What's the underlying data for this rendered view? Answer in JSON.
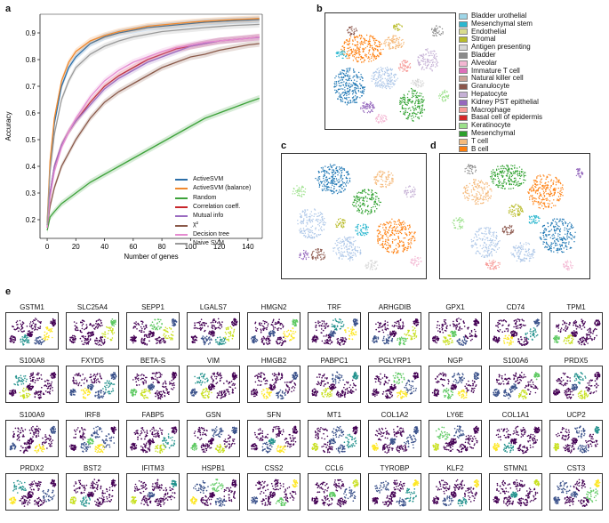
{
  "panels": {
    "a": "a",
    "b": "b",
    "c": "c",
    "d": "d",
    "e": "e"
  },
  "chart_data": {
    "type": "line",
    "xlabel": "Number of genes",
    "ylabel": "Accuracy",
    "xlim": [
      -5,
      150
    ],
    "ylim": [
      0.13,
      0.97
    ],
    "xticks": [
      0,
      20,
      40,
      60,
      80,
      100,
      120,
      140
    ],
    "yticks": [
      0.2,
      0.3,
      0.4,
      0.5,
      0.6,
      0.7,
      0.8,
      0.9
    ],
    "grid": false,
    "legend_position": "lower-right",
    "x": [
      0,
      2,
      5,
      10,
      15,
      20,
      30,
      40,
      50,
      60,
      70,
      80,
      90,
      100,
      110,
      120,
      130,
      140,
      148
    ],
    "series": [
      {
        "name": "ActiveSVM",
        "color": "#2c6fa8",
        "values": [
          0.18,
          0.4,
          0.56,
          0.7,
          0.77,
          0.81,
          0.86,
          0.885,
          0.9,
          0.91,
          0.92,
          0.925,
          0.93,
          0.935,
          0.94,
          0.943,
          0.946,
          0.948,
          0.95
        ]
      },
      {
        "name": "ActiveSVM (balance)",
        "color": "#f0892e",
        "values": [
          0.19,
          0.42,
          0.58,
          0.72,
          0.79,
          0.83,
          0.87,
          0.89,
          0.905,
          0.915,
          0.925,
          0.93,
          0.935,
          0.94,
          0.944,
          0.947,
          0.95,
          0.952,
          0.954
        ]
      },
      {
        "name": "Random",
        "color": "#3da23a",
        "values": [
          0.16,
          0.21,
          0.23,
          0.26,
          0.28,
          0.3,
          0.34,
          0.37,
          0.4,
          0.43,
          0.46,
          0.49,
          0.52,
          0.55,
          0.58,
          0.6,
          0.62,
          0.64,
          0.655
        ]
      },
      {
        "name": "Correlation coeff.",
        "color": "#c8262b",
        "values": [
          0.17,
          0.3,
          0.4,
          0.48,
          0.53,
          0.57,
          0.64,
          0.7,
          0.74,
          0.77,
          0.8,
          0.82,
          0.84,
          0.85,
          0.86,
          0.87,
          0.875,
          0.88,
          0.885
        ]
      },
      {
        "name": "Mutual info",
        "color": "#9a6bc0",
        "values": [
          0.17,
          0.3,
          0.4,
          0.48,
          0.53,
          0.57,
          0.63,
          0.69,
          0.73,
          0.76,
          0.79,
          0.81,
          0.83,
          0.85,
          0.86,
          0.87,
          0.875,
          0.88,
          0.883
        ]
      },
      {
        "name": "χ²",
        "color": "#8a5a4a",
        "values": [
          0.17,
          0.25,
          0.32,
          0.4,
          0.45,
          0.5,
          0.58,
          0.64,
          0.68,
          0.71,
          0.74,
          0.77,
          0.79,
          0.81,
          0.82,
          0.835,
          0.845,
          0.855,
          0.86
        ]
      },
      {
        "name": "Decision tree",
        "color": "#e58bd0",
        "values": [
          0.17,
          0.28,
          0.38,
          0.47,
          0.53,
          0.58,
          0.66,
          0.72,
          0.76,
          0.79,
          0.81,
          0.83,
          0.845,
          0.855,
          0.865,
          0.87,
          0.875,
          0.88,
          0.885
        ]
      },
      {
        "name": "Naive SVM",
        "color": "#9a9a9a",
        "values": [
          0.18,
          0.38,
          0.52,
          0.65,
          0.72,
          0.77,
          0.82,
          0.85,
          0.87,
          0.885,
          0.895,
          0.905,
          0.91,
          0.915,
          0.92,
          0.924,
          0.928,
          0.93,
          0.932
        ]
      }
    ]
  },
  "cell_types": [
    {
      "name": "Bladder urothelial",
      "color": "#9ed6e8"
    },
    {
      "name": "Mesenchymal stem",
      "color": "#2bb7cf"
    },
    {
      "name": "Endothelial",
      "color": "#d9dc8e"
    },
    {
      "name": "Stromal",
      "color": "#b9bc2b"
    },
    {
      "name": "Antigen presenting",
      "color": "#d8d8d8"
    },
    {
      "name": "Bladder",
      "color": "#8a8a8a"
    },
    {
      "name": "Alveolar",
      "color": "#f3b6d2"
    },
    {
      "name": "Immature T cell",
      "color": "#dd6fb9"
    },
    {
      "name": "Natural killer cell",
      "color": "#c9a397"
    },
    {
      "name": "Granulocyte",
      "color": "#8b564b"
    },
    {
      "name": "Hepatocyte",
      "color": "#c5b0d5"
    },
    {
      "name": "Kidney PST epithelial",
      "color": "#9568bd"
    },
    {
      "name": "Macrophage",
      "color": "#f79a97"
    },
    {
      "name": "Basal cell of epidermis",
      "color": "#d62728"
    },
    {
      "name": "Keratinocyte",
      "color": "#9be08a"
    },
    {
      "name": "Mesenchymal",
      "color": "#2ca02c"
    },
    {
      "name": "T cell",
      "color": "#f5ba7c"
    },
    {
      "name": "B cell",
      "color": "#ff7f0e"
    },
    {
      "name": "",
      "color": "#aec7e8"
    },
    {
      "name": "",
      "color": "#1f77b4"
    }
  ],
  "genes": [
    "GSTM1",
    "SLC25A4",
    "SEPP1",
    "LGALS7",
    "HMGN2",
    "TRF",
    "ARHGDIB",
    "GPX1",
    "CD74",
    "TPM1",
    "S100A8",
    "FXYD5",
    "BETA-S",
    "VIM",
    "HMGB2",
    "PABPC1",
    "PGLYRP1",
    "NGP",
    "S100A6",
    "PRDX5",
    "S100A9",
    "IRF8",
    "FABP5",
    "GSN",
    "SFN",
    "MT1",
    "COL1A2",
    "LY6E",
    "COL1A1",
    "UCP2",
    "PRDX2",
    "BST2",
    "IFITM3",
    "HSPB1",
    "CSS2",
    "CCL6",
    "TYROBP",
    "KLF2",
    "STMN1",
    "CST3"
  ]
}
